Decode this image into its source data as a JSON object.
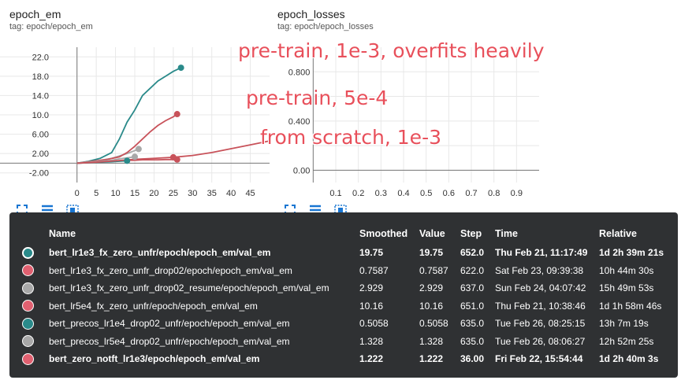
{
  "charts": {
    "left": {
      "title": "epoch_em",
      "tag": "tag: epoch/epoch_em"
    },
    "right": {
      "title": "epoch_losses",
      "tag": "tag: epoch/epoch_losses"
    }
  },
  "chart_data": [
    {
      "type": "line",
      "title": "epoch_em",
      "subtitle": "tag: epoch/epoch_em",
      "xlim": [
        -20,
        50
      ],
      "ylim": [
        -4,
        24
      ],
      "xticks": [
        0,
        5,
        10,
        15,
        20,
        25,
        30,
        35,
        40,
        45
      ],
      "yticks": [
        22.0,
        18.0,
        14.0,
        10.0,
        6.0,
        2.0,
        -2.0
      ],
      "ytick_labels": [
        "22.0",
        "18.0",
        "14.0",
        "10.0",
        "6.00",
        "2.00",
        "-2.00"
      ],
      "series": [
        {
          "name": "bert_lr1e3_fx_zero_unfr/epoch/epoch_em/val_em",
          "color": "#2a8a8a",
          "x": [
            0,
            3,
            6,
            9,
            11,
            13,
            15,
            17,
            19,
            21,
            23,
            25,
            27
          ],
          "y": [
            0.0,
            0.4,
            1.0,
            2.2,
            5.0,
            8.5,
            11.0,
            14.0,
            15.5,
            17.0,
            18.0,
            19.0,
            19.75
          ]
        },
        {
          "name": "bert_lr1e3_fx_zero_unfr_drop02/epoch/epoch_em/val_em",
          "color": "#c8525a",
          "x": [
            0,
            5,
            8,
            11,
            13,
            15,
            17,
            19,
            21,
            23,
            25,
            26
          ],
          "y": [
            0.0,
            0.2,
            0.4,
            0.5,
            0.6,
            0.6,
            0.7,
            0.7,
            0.7,
            0.75,
            0.75,
            0.7587
          ]
        },
        {
          "name": "bert_lr1e3_fx_zero_unfr_drop02_resume/epoch/epoch_em/val_em",
          "color": "#a8a8a8",
          "x": [
            0,
            3,
            6,
            9,
            11,
            13,
            15,
            16
          ],
          "y": [
            0.0,
            0.3,
            0.6,
            1.0,
            1.5,
            2.0,
            2.6,
            2.929
          ]
        },
        {
          "name": "bert_lr5e4_fx_zero_unfr/epoch/epoch_em/val_em",
          "color": "#c8525a",
          "x": [
            0,
            4,
            8,
            11,
            13,
            15,
            17,
            19,
            21,
            23,
            25,
            26
          ],
          "y": [
            0.0,
            0.4,
            0.8,
            1.3,
            2.2,
            3.5,
            5.0,
            6.5,
            7.8,
            8.8,
            9.6,
            10.16
          ]
        },
        {
          "name": "bert_precos_lr1e4_drop02_unfr/epoch/epoch_em/val_em",
          "color": "#2a8a8a",
          "x": [
            0,
            3,
            6,
            9,
            11,
            13
          ],
          "y": [
            0.0,
            0.1,
            0.2,
            0.3,
            0.4,
            0.5058
          ]
        },
        {
          "name": "bert_precos_lr5e4_drop02_unfr/epoch/epoch_em/val_em",
          "color": "#a8a8a8",
          "x": [
            0,
            3,
            6,
            9,
            11,
            13,
            15
          ],
          "y": [
            0.0,
            0.2,
            0.4,
            0.6,
            0.9,
            1.1,
            1.328
          ]
        },
        {
          "name": "bert_zero_notft_lr1e3/epoch/epoch_em/val_em",
          "color": "#c8525a",
          "x": [
            0,
            5,
            10,
            15,
            20,
            25,
            30,
            35,
            40,
            45,
            50
          ],
          "y": [
            0.0,
            0.2,
            0.5,
            0.8,
            1.0,
            1.222,
            1.6,
            2.2,
            3.0,
            3.8,
            4.6
          ]
        }
      ]
    },
    {
      "type": "line",
      "title": "epoch_losses",
      "subtitle": "tag: epoch/epoch_losses",
      "xlim": [
        -0.2,
        1.0
      ],
      "ylim": [
        -0.1,
        1.0
      ],
      "xticks": [
        0.1,
        0.2,
        0.3,
        0.4,
        0.5,
        0.6,
        0.7,
        0.8,
        0.9
      ],
      "xtick_labels": [
        "0.1",
        "0.2",
        "0.3",
        "0.4",
        "0.5",
        "0.6",
        "0.7",
        "0.8",
        "0.9"
      ],
      "yticks": [
        0.8,
        0.4,
        0.0
      ],
      "ytick_labels": [
        "0.800",
        "0.400",
        "0.00"
      ],
      "series": []
    }
  ],
  "annotations": [
    "pre-train, 1e-3, overfits heavily",
    "pre-train, 5e-4",
    "from scratch, 1e-3"
  ],
  "tooltip": {
    "headers": {
      "name": "Name",
      "smoothed": "Smoothed",
      "value": "Value",
      "step": "Step",
      "time": "Time",
      "relative": "Relative"
    },
    "rows": [
      {
        "color": "#2a8a8a",
        "selected": true,
        "bold": true,
        "name": "bert_lr1e3_fx_zero_unfr/epoch/epoch_em/val_em",
        "smoothed": "19.75",
        "value": "19.75",
        "step": "652.0",
        "time": "Thu Feb 21, 11:17:49",
        "relative": "1d 2h 39m 21s"
      },
      {
        "color": "#e06070",
        "selected": false,
        "bold": false,
        "name": "bert_lr1e3_fx_zero_unfr_drop02/epoch/epoch_em/val_em",
        "smoothed": "0.7587",
        "value": "0.7587",
        "step": "622.0",
        "time": "Sat Feb 23, 09:39:38",
        "relative": "10h 44m 30s"
      },
      {
        "color": "#a8a8a8",
        "selected": false,
        "bold": false,
        "name": "bert_lr1e3_fx_zero_unfr_drop02_resume/epoch/epoch_em/val_em",
        "smoothed": "2.929",
        "value": "2.929",
        "step": "637.0",
        "time": "Sun Feb 24, 04:07:42",
        "relative": "15h 49m 53s"
      },
      {
        "color": "#e06070",
        "selected": false,
        "bold": false,
        "name": "bert_lr5e4_fx_zero_unfr/epoch/epoch_em/val_em",
        "smoothed": "10.16",
        "value": "10.16",
        "step": "651.0",
        "time": "Thu Feb 21, 10:38:46",
        "relative": "1d 1h 58m 46s"
      },
      {
        "color": "#2a8a8a",
        "selected": false,
        "bold": false,
        "name": "bert_precos_lr1e4_drop02_unfr/epoch/epoch_em/val_em",
        "smoothed": "0.5058",
        "value": "0.5058",
        "step": "635.0",
        "time": "Tue Feb 26, 08:25:15",
        "relative": "13h 7m 19s"
      },
      {
        "color": "#a8a8a8",
        "selected": false,
        "bold": false,
        "name": "bert_precos_lr5e4_drop02_unfr/epoch/epoch_em/val_em",
        "smoothed": "1.328",
        "value": "1.328",
        "step": "635.0",
        "time": "Tue Feb 26, 08:06:27",
        "relative": "12h 52m 25s"
      },
      {
        "color": "#e06070",
        "selected": false,
        "bold": true,
        "name": "bert_zero_notft_lr1e3/epoch/epoch_em/val_em",
        "smoothed": "1.222",
        "value": "1.222",
        "step": "36.00",
        "time": "Fri Feb 22, 15:54:44",
        "relative": "1d 2h 40m 3s"
      }
    ]
  },
  "toolbar_icons": [
    "expand-icon",
    "list-icon",
    "fit-domain-icon"
  ]
}
